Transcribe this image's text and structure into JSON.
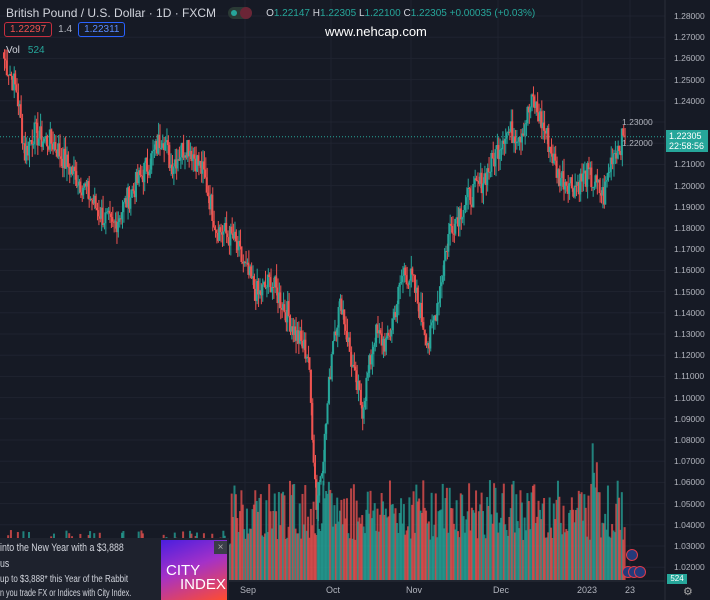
{
  "header": {
    "symbol": "British Pound / U.S. Dollar · 1D · FXCM",
    "open_label": "O",
    "open": "1.22147",
    "high_label": "H",
    "high": "1.22305",
    "low_label": "L",
    "low": "1.22100",
    "close_label": "C",
    "close": "1.22305",
    "change": "+0.00035 (+0.03%)"
  },
  "trade": {
    "sell": "1.22297",
    "spread": "1.4",
    "buy": "1.22311"
  },
  "volume": {
    "label": "Vol",
    "value": "524"
  },
  "watermark": "www.nehcap.com",
  "popup": {
    "title": "into the New Year with a $3,888",
    "title2": "us",
    "line1": "up to $3,888* this Year of the Rabbit",
    "line2": "n you trade FX or Indices with City Index.",
    "ad_line1": "CITY",
    "ad_line2": "INDEX",
    "close": "×"
  },
  "price_axis": [
    "1.28000",
    "1.27000",
    "1.26000",
    "1.25000",
    "1.24000",
    "1.23000",
    "1.22000",
    "1.21000",
    "1.20000",
    "1.19000",
    "1.18000",
    "1.17000",
    "1.16000",
    "1.15000",
    "1.14000",
    "1.13000",
    "1.12000",
    "1.11000",
    "1.10000",
    "1.09000",
    "1.08000",
    "1.07000",
    "1.06000",
    "1.05000",
    "1.04000",
    "1.03000",
    "1.02000"
  ],
  "current_price": {
    "price": "1.22305",
    "countdown": "22:58:56"
  },
  "time_axis": [
    "Sep",
    "Oct",
    "Nov",
    "Dec",
    "2023",
    "23"
  ],
  "colors": {
    "up": "#26a69a",
    "down": "#ef5350",
    "bg": "#161a25"
  },
  "chart_data": {
    "type": "candlestick",
    "symbol": "GBPUSD",
    "ylim": [
      1.02,
      1.28
    ],
    "current": 1.22305,
    "close_trajectory": [
      [
        0,
        1.26
      ],
      [
        3,
        1.245
      ],
      [
        5,
        1.215
      ],
      [
        7,
        1.225
      ],
      [
        9,
        1.222
      ],
      [
        12,
        1.22
      ],
      [
        15,
        1.21
      ],
      [
        19,
        1.2
      ],
      [
        22,
        1.19
      ],
      [
        26,
        1.18
      ],
      [
        30,
        1.195
      ],
      [
        33,
        1.205
      ],
      [
        36,
        1.215
      ],
      [
        38,
        1.225
      ],
      [
        40,
        1.21
      ],
      [
        44,
        1.22
      ],
      [
        48,
        1.205
      ],
      [
        51,
        1.18
      ],
      [
        55,
        1.175
      ],
      [
        58,
        1.16
      ],
      [
        61,
        1.148
      ],
      [
        64,
        1.155
      ],
      [
        68,
        1.14
      ],
      [
        70,
        1.13
      ],
      [
        73,
        1.12
      ],
      [
        75,
        1.05
      ],
      [
        77,
        1.08
      ],
      [
        79,
        1.13
      ],
      [
        81,
        1.145
      ],
      [
        84,
        1.11
      ],
      [
        86,
        1.095
      ],
      [
        89,
        1.13
      ],
      [
        92,
        1.125
      ],
      [
        96,
        1.16
      ],
      [
        98,
        1.155
      ],
      [
        102,
        1.125
      ],
      [
        104,
        1.145
      ],
      [
        107,
        1.18
      ],
      [
        110,
        1.19
      ],
      [
        114,
        1.2
      ],
      [
        117,
        1.21
      ],
      [
        120,
        1.225
      ],
      [
        124,
        1.225
      ],
      [
        127,
        1.24
      ],
      [
        130,
        1.225
      ],
      [
        133,
        1.205
      ],
      [
        137,
        1.2
      ],
      [
        140,
        1.205
      ],
      [
        144,
        1.195
      ],
      [
        146,
        1.215
      ],
      [
        149,
        1.223
      ]
    ]
  }
}
